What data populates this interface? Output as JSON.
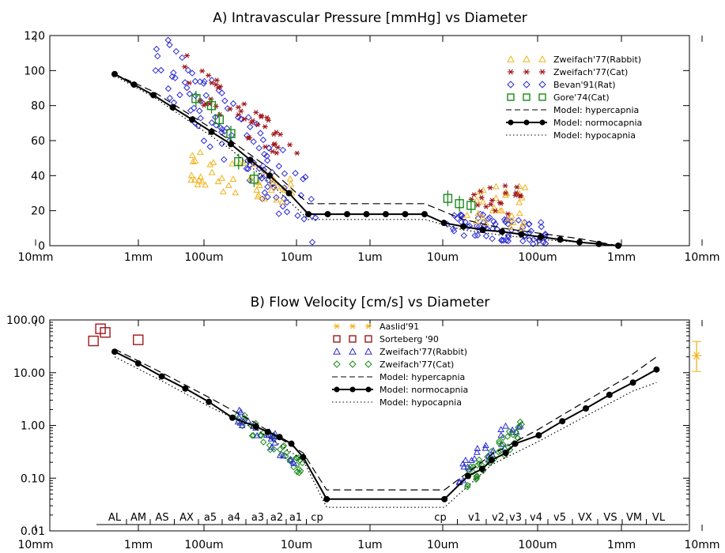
{
  "chart_data": [
    {
      "type": "scatter",
      "title": "A) Intravascular Pressure [mmHg] vs Diameter",
      "x_scale": "log",
      "x_axis_direction": "decreasing diameter left to right (arterial side), then increasing (venous side)",
      "x_tick_labels": [
        "10mm",
        "1mm",
        "100um",
        "10um",
        "1um",
        "10um",
        "100um",
        "1mm",
        "10mm"
      ],
      "ylim": [
        0,
        120
      ],
      "y_ticks": [
        "0",
        "20",
        "40",
        "60",
        "80",
        "100",
        "120"
      ],
      "legend_position": "top-right",
      "legend": [
        {
          "label": "Zweifach'77(Rabbit)",
          "marker": "triangle",
          "color": "#f2b21b"
        },
        {
          "label": "Zweifach'77(Cat)",
          "marker": "asterisk",
          "color": "#a0181c"
        },
        {
          "label": "Bevan'91(Rat)",
          "marker": "diamond",
          "color": "#2b2bd6"
        },
        {
          "label": "Gore'74(Cat)",
          "marker": "square",
          "color": "#1a8a1a"
        },
        {
          "label": "Model: hypercapnia",
          "line": "dashed",
          "color": "#000000"
        },
        {
          "label": "Model: normocapnia",
          "line": "solid-dots",
          "color": "#000000"
        },
        {
          "label": "Model: hypocapnia",
          "line": "dotted",
          "color": "#000000"
        }
      ],
      "series": [
        {
          "name": "Model: normocapnia",
          "points": [
            [
              0,
              98
            ],
            [
              0.5,
              92
            ],
            [
              1,
              86
            ],
            [
              1.5,
              79
            ],
            [
              2,
              72
            ],
            [
              2.5,
              65
            ],
            [
              3,
              58
            ],
            [
              3.5,
              49
            ],
            [
              4,
              40
            ],
            [
              4.5,
              30
            ],
            [
              5,
              18
            ],
            [
              5.5,
              18
            ],
            [
              6,
              18
            ],
            [
              6.5,
              18
            ],
            [
              7,
              18
            ],
            [
              7.5,
              18
            ],
            [
              8,
              18
            ],
            [
              8.5,
              13
            ],
            [
              9,
              11
            ],
            [
              9.5,
              9
            ],
            [
              10,
              8
            ],
            [
              10.5,
              6.5
            ],
            [
              11,
              5
            ],
            [
              11.5,
              3.5
            ],
            [
              12,
              2
            ],
            [
              12.5,
              1
            ],
            [
              13,
              0
            ]
          ]
        },
        {
          "name": "Model: hypercapnia",
          "points": [
            [
              0,
              98
            ],
            [
              1,
              88
            ],
            [
              2,
              74
            ],
            [
              3,
              60
            ],
            [
              4,
              44
            ],
            [
              5,
              24
            ],
            [
              8,
              24
            ],
            [
              9,
              15
            ],
            [
              10,
              10
            ],
            [
              11,
              7
            ],
            [
              12,
              4
            ],
            [
              13,
              0
            ]
          ]
        },
        {
          "name": "Model: hypocapnia",
          "points": [
            [
              0,
              97
            ],
            [
              1,
              85
            ],
            [
              2,
              70
            ],
            [
              3,
              55
            ],
            [
              4,
              36
            ],
            [
              5,
              15
            ],
            [
              8,
              15
            ],
            [
              9,
              9
            ],
            [
              10,
              6
            ],
            [
              11,
              3.5
            ],
            [
              12,
              2
            ],
            [
              13,
              0
            ]
          ]
        },
        {
          "name": "Gore'74(Cat)",
          "points": [
            [
              2.1,
              84
            ],
            [
              2.5,
              80
            ],
            [
              2.7,
              72
            ],
            [
              3.0,
              64
            ],
            [
              3.2,
              48
            ],
            [
              3.6,
              38
            ],
            [
              8.6,
              27
            ],
            [
              8.9,
              24
            ],
            [
              9.2,
              23
            ]
          ]
        }
      ]
    },
    {
      "type": "scatter",
      "title": "B) Flow Velocity [cm/s] vs Diameter",
      "x_scale": "log",
      "x_tick_labels": [
        "10mm",
        "1mm",
        "100um",
        "10um",
        "1um",
        "10um",
        "100um",
        "1mm",
        "10mm"
      ],
      "y_scale": "log",
      "ylim": [
        0.01,
        100
      ],
      "y_ticks": [
        "0.01",
        "0.10",
        "1.00",
        "10.00",
        "100.00"
      ],
      "legend_position": "top-center",
      "legend": [
        {
          "label": "Aaslid'91",
          "marker": "asterisk",
          "color": "#f2b21b"
        },
        {
          "label": "Sorteberg '90",
          "marker": "square",
          "color": "#a0181c"
        },
        {
          "label": "Zweifach'77(Rabbit)",
          "marker": "triangle",
          "color": "#2b2bd6"
        },
        {
          "label": "Zweifach'77(Cat)",
          "marker": "diamond",
          "color": "#1a8a1a"
        },
        {
          "label": "Model: hypercapnia",
          "line": "dashed",
          "color": "#000000"
        },
        {
          "label": "Model: normocapnia",
          "line": "solid-dots",
          "color": "#000000"
        },
        {
          "label": "Model: hypocapnia",
          "line": "dotted",
          "color": "#000000"
        }
      ],
      "segment_labels": [
        "AL",
        "AM",
        "AS",
        "AX",
        "a5",
        "a4",
        "a3",
        "a2",
        "a1",
        "cp",
        "cp",
        "v1",
        "v2",
        "v3",
        "v4",
        "v5",
        "VX",
        "VS",
        "VM",
        "VL"
      ],
      "series": [
        {
          "name": "Model: normocapnia",
          "points": [
            [
              0,
              25
            ],
            [
              0.5,
              15
            ],
            [
              1,
              8.5
            ],
            [
              1.5,
              5
            ],
            [
              2,
              2.8
            ],
            [
              2.5,
              1.4
            ],
            [
              3,
              0.95
            ],
            [
              3.25,
              0.75
            ],
            [
              3.5,
              0.6
            ],
            [
              3.75,
              0.45
            ],
            [
              4,
              0.25
            ],
            [
              4.5,
              0.04
            ],
            [
              7,
              0.04
            ],
            [
              7.5,
              0.11
            ],
            [
              7.8,
              0.15
            ],
            [
              8,
              0.22
            ],
            [
              8.3,
              0.3
            ],
            [
              8.5,
              0.45
            ],
            [
              9,
              0.65
            ],
            [
              9.5,
              1.2
            ],
            [
              10,
              2.1
            ],
            [
              10.5,
              3.8
            ],
            [
              11,
              6.5
            ],
            [
              11.5,
              11.5
            ]
          ]
        },
        {
          "name": "Model: hypercapnia",
          "points": [
            [
              0,
              28
            ],
            [
              1,
              10
            ],
            [
              2,
              3.4
            ],
            [
              3,
              1.1
            ],
            [
              4,
              0.3
            ],
            [
              4.5,
              0.06
            ],
            [
              7,
              0.06
            ],
            [
              8,
              0.28
            ],
            [
              9,
              0.85
            ],
            [
              10,
              2.9
            ],
            [
              11,
              9.5
            ],
            [
              11.5,
              20
            ]
          ]
        },
        {
          "name": "Model: hypocapnia",
          "points": [
            [
              0,
              20
            ],
            [
              1,
              7
            ],
            [
              2,
              2.3
            ],
            [
              3,
              0.85
            ],
            [
              4,
              0.22
            ],
            [
              4.5,
              0.028
            ],
            [
              7,
              0.028
            ],
            [
              8,
              0.18
            ],
            [
              9,
              0.5
            ],
            [
              10,
              1.5
            ],
            [
              11,
              4.5
            ],
            [
              11.5,
              6.5
            ]
          ]
        },
        {
          "name": "Sorteberg '90",
          "points": [
            [
              -0.45,
              40
            ],
            [
              -0.3,
              68
            ],
            [
              -0.2,
              58
            ],
            [
              0.5,
              42
            ]
          ]
        },
        {
          "name": "Aaslid'91",
          "points": [
            [
              12.35,
              21
            ]
          ]
        }
      ]
    }
  ]
}
